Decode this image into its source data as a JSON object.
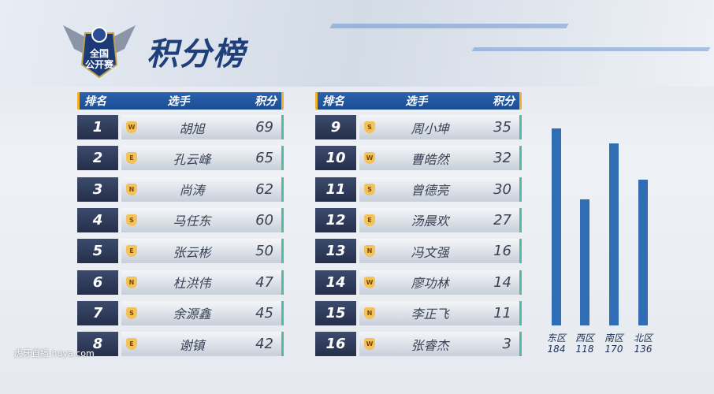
{
  "header": {
    "title": "积分榜",
    "logo_text": "全国公开赛"
  },
  "table_headers": {
    "rank": "排名",
    "player": "选手",
    "score": "积分"
  },
  "left_rows": [
    {
      "rank": "1",
      "region": "W",
      "name": "胡旭",
      "score": "69"
    },
    {
      "rank": "2",
      "region": "E",
      "name": "孔云峰",
      "score": "65"
    },
    {
      "rank": "3",
      "region": "N",
      "name": "尚涛",
      "score": "62"
    },
    {
      "rank": "4",
      "region": "S",
      "name": "马任东",
      "score": "60"
    },
    {
      "rank": "5",
      "region": "E",
      "name": "张云彬",
      "score": "50"
    },
    {
      "rank": "6",
      "region": "N",
      "name": "杜洪伟",
      "score": "47"
    },
    {
      "rank": "7",
      "region": "S",
      "name": "余源鑫",
      "score": "45"
    },
    {
      "rank": "8",
      "region": "E",
      "name": "谢镇",
      "score": "42"
    }
  ],
  "right_rows": [
    {
      "rank": "9",
      "region": "S",
      "name": "周小坤",
      "score": "35"
    },
    {
      "rank": "10",
      "region": "W",
      "name": "曹皓然",
      "score": "32"
    },
    {
      "rank": "11",
      "region": "S",
      "name": "曾德亮",
      "score": "30"
    },
    {
      "rank": "12",
      "region": "E",
      "name": "汤晨欢",
      "score": "27"
    },
    {
      "rank": "13",
      "region": "N",
      "name": "冯文强",
      "score": "16"
    },
    {
      "rank": "14",
      "region": "W",
      "name": "廖功林",
      "score": "14"
    },
    {
      "rank": "15",
      "region": "N",
      "name": "李正飞",
      "score": "11"
    },
    {
      "rank": "16",
      "region": "W",
      "name": "张睿杰",
      "score": "3"
    }
  ],
  "chart_data": {
    "type": "bar",
    "categories": [
      "东区",
      "西区",
      "南区",
      "北区"
    ],
    "values": [
      184,
      118,
      170,
      136
    ],
    "bar_color": "#2f6db5"
  },
  "watermark": "虎牙直播 huya.com"
}
